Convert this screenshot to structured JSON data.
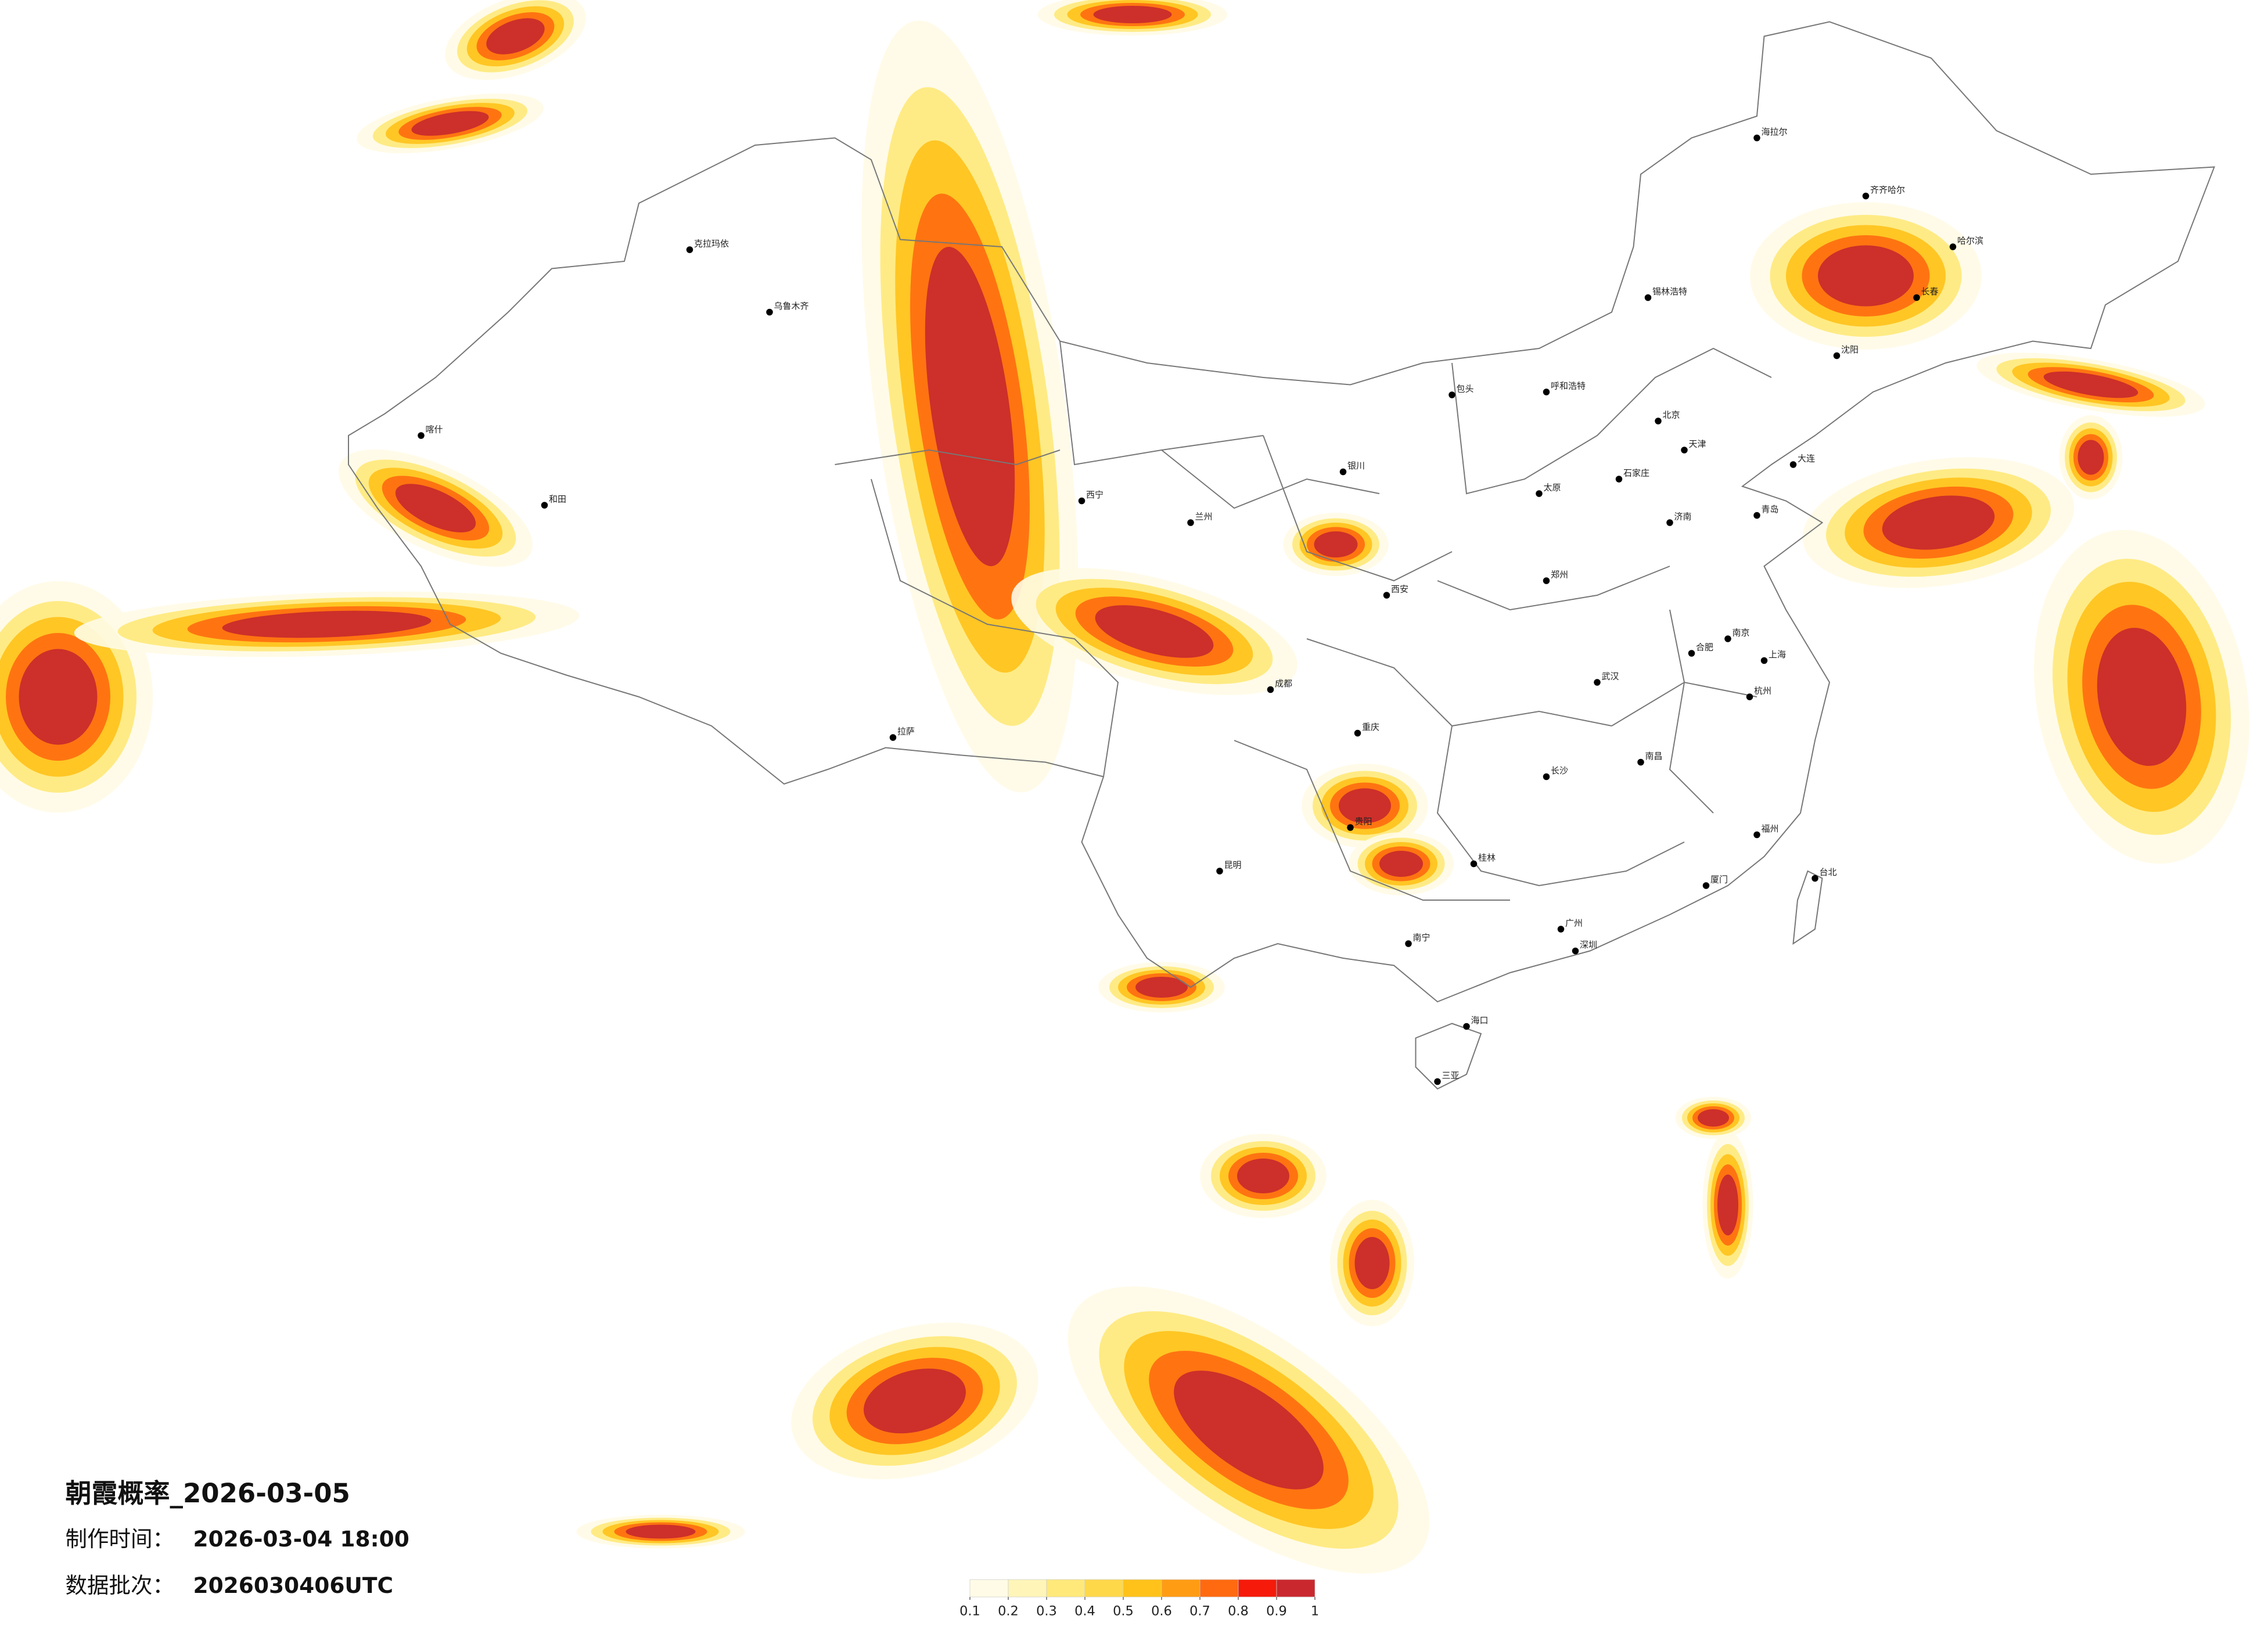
{
  "title": "朝霞概率_2026-03-05",
  "made_time_label": "制作时间：",
  "made_time": "2026-03-04 18:00",
  "batch_label": "数据批次：",
  "batch": "2026030406UTC",
  "legend": {
    "ticks": [
      0.1,
      0.2,
      0.3,
      0.4,
      0.5,
      0.6,
      0.7,
      0.8,
      0.9,
      1
    ],
    "colors": [
      "#fffbe6",
      "#fff5b8",
      "#ffe97a",
      "#ffd84a",
      "#ffc21a",
      "#ff9c14",
      "#ff6a10",
      "#f51a0a",
      "#c8282e"
    ]
  },
  "cities": [
    "北京",
    "天津",
    "上海",
    "重庆",
    "哈尔滨",
    "长春",
    "沈阳",
    "呼和浩特",
    "银川",
    "兰州",
    "西宁",
    "乌鲁木齐",
    "拉萨",
    "成都",
    "贵阳",
    "昆明",
    "南宁",
    "广州",
    "福州",
    "南昌",
    "长沙",
    "武汉",
    "郑州",
    "济南",
    "石家庄",
    "太原",
    "西安",
    "合肥",
    "南京",
    "杭州",
    "海口",
    "台北",
    "喀什",
    "克拉玛依",
    "和田",
    "齐齐哈尔",
    "海拉尔",
    "锡林浩特",
    "包头",
    "大连",
    "青岛",
    "厦门",
    "深圳",
    "桂林",
    "三亚"
  ]
}
